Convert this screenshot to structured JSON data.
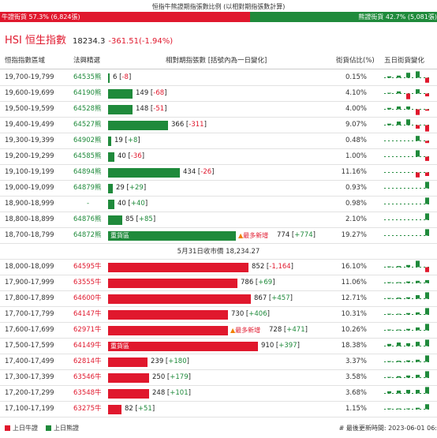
{
  "title": "恒指牛熊證期指張數比例 (以相對期指張數計算)",
  "ratio": {
    "bull_label": "牛證街貨 57.3% (6,824張)",
    "bear_label": "熊證街貨 42.7% (5,081張)",
    "bull_fraction": 0.573
  },
  "index": {
    "name": "HSI 恒生指數",
    "price": "18234.3",
    "change": "-361.51(-1.94%)"
  },
  "header": {
    "range": "恒指指數區域",
    "pick": "法興精選",
    "contracts": "相對期指張數 [括號內為一日變化]",
    "pct": "街貨佔比(%)",
    "five_day": "五日街貨變化"
  },
  "bear_rows": [
    {
      "range": "19,700-19,799",
      "code": "64535熊",
      "value": 6,
      "change": "-8",
      "change_sign": "neg",
      "pct": "0.15%",
      "spark": [
        0.2,
        0.3,
        0.7,
        0.9,
        -0.7
      ]
    },
    {
      "range": "19,600-19,699",
      "code": "64190熊",
      "value": 149,
      "change": "-68",
      "change_sign": "neg",
      "pct": "4.10%",
      "spark": [
        0.1,
        0.3,
        -0.8,
        0.6,
        -0.4
      ]
    },
    {
      "range": "19,500-19,599",
      "code": "64528熊",
      "value": 148,
      "change": "-51",
      "change_sign": "neg",
      "pct": "4.00%",
      "spark": [
        0.2,
        0.4,
        0.4,
        -0.8,
        -0.2
      ]
    },
    {
      "range": "19,400-19,499",
      "code": "64527熊",
      "value": 366,
      "change": "-311",
      "change_sign": "neg",
      "pct": "9.07%",
      "spark": [
        0.2,
        0.5,
        0.8,
        -0.5,
        -0.9
      ]
    },
    {
      "range": "19,300-19,399",
      "code": "64902熊",
      "value": 19,
      "change": "+8",
      "change_sign": "pos",
      "pct": "0.48%",
      "spark": [
        0,
        0,
        0,
        0.7,
        -0.3
      ]
    },
    {
      "range": "19,200-19,299",
      "code": "64585熊",
      "value": 40,
      "change": "-36",
      "change_sign": "neg",
      "pct": "1.00%",
      "spark": [
        0,
        0,
        0,
        0.9,
        -0.6
      ]
    },
    {
      "range": "19,100-19,199",
      "code": "64894熊",
      "value": 434,
      "change": "-26",
      "change_sign": "neg",
      "pct": "11.16%",
      "spark": [
        0,
        0,
        0,
        -0.7,
        -0.5
      ]
    },
    {
      "range": "19,000-19,099",
      "code": "64879熊",
      "value": 29,
      "change": "+29",
      "change_sign": "pos",
      "pct": "0.93%",
      "spark": [
        0,
        0,
        0,
        0,
        0.9
      ]
    },
    {
      "range": "18,900-18,999",
      "code": "-",
      "value": 40,
      "change": "+40",
      "change_sign": "pos",
      "pct": "0.98%",
      "spark": [
        0,
        0,
        0,
        0,
        0.9
      ]
    },
    {
      "range": "18,800-18,899",
      "code": "64876熊",
      "value": 85,
      "change": "+85",
      "change_sign": "pos",
      "pct": "2.10%",
      "spark": [
        0,
        0,
        0,
        0,
        0.9
      ]
    },
    {
      "range": "18,700-18,799",
      "code": "64872熊",
      "value": 774,
      "change": "+774",
      "change_sign": "pos",
      "pct": "19.27%",
      "heavy": "重貨區",
      "newadd": "最多新增",
      "spark": [
        0,
        0,
        0,
        0,
        0.9
      ]
    }
  ],
  "close_line": "5月31日收市價 18,234.27",
  "bull_rows": [
    {
      "range": "18,000-18,099",
      "code": "64595牛",
      "value": 852,
      "change": "-1,164",
      "change_sign": "neg",
      "pct": "16.10%",
      "spark": [
        0.1,
        0.15,
        0.3,
        0.9,
        -0.7
      ]
    },
    {
      "range": "17,900-17,999",
      "code": "63555牛",
      "value": 786,
      "change": "+69",
      "change_sign": "pos",
      "pct": "11.06%",
      "spark": [
        0.1,
        0.1,
        0.2,
        0.3,
        0.4
      ]
    },
    {
      "range": "17,800-17,899",
      "code": "64600牛",
      "value": 867,
      "change": "+457",
      "change_sign": "pos",
      "pct": "12.71%",
      "spark": [
        0.1,
        0.15,
        0.2,
        0.5,
        0.9
      ]
    },
    {
      "range": "17,700-17,799",
      "code": "64147牛",
      "value": 730,
      "change": "+406",
      "change_sign": "pos",
      "pct": "10.31%",
      "spark": [
        0.1,
        0.1,
        0.2,
        0.3,
        0.9
      ]
    },
    {
      "range": "17,600-17,699",
      "code": "62971牛",
      "value": 728,
      "change": "+471",
      "change_sign": "pos",
      "pct": "10.26%",
      "newadd": "最多新增",
      "spark": [
        0.1,
        0.1,
        0.2,
        0.4,
        0.9
      ]
    },
    {
      "range": "17,500-17,599",
      "code": "64149牛",
      "value": 910,
      "change": "+397",
      "change_sign": "pos",
      "pct": "18.38%",
      "heavy": "重貨區",
      "spark": [
        0.3,
        0.5,
        0.4,
        0.6,
        0.9
      ]
    },
    {
      "range": "17,400-17,499",
      "code": "62814牛",
      "value": 239,
      "change": "+180",
      "change_sign": "pos",
      "pct": "3.37%",
      "spark": [
        0.1,
        0.15,
        0.2,
        0.3,
        0.9
      ]
    },
    {
      "range": "17,300-17,399",
      "code": "63546牛",
      "value": 250,
      "change": "+179",
      "change_sign": "pos",
      "pct": "3.58%",
      "spark": [
        0.1,
        0.2,
        0.3,
        0.4,
        0.9
      ]
    },
    {
      "range": "17,200-17,299",
      "code": "63548牛",
      "value": 248,
      "change": "+101",
      "change_sign": "pos",
      "pct": "3.68%",
      "spark": [
        0.3,
        0.4,
        0.5,
        0.5,
        0.9
      ]
    },
    {
      "range": "17,100-17,199",
      "code": "63275牛",
      "value": 82,
      "change": "+51",
      "change_sign": "pos",
      "pct": "1.15%",
      "spark": [
        0.1,
        0.1,
        0.1,
        0.2,
        0.7
      ]
    }
  ],
  "legend": {
    "bull": "上日牛證",
    "bear": "上日熊證"
  },
  "update_time": "# 最後更新時間: 2023-06-01 06:",
  "colors": {
    "bull": "#e0182d",
    "bear": "#1f8a3b"
  }
}
